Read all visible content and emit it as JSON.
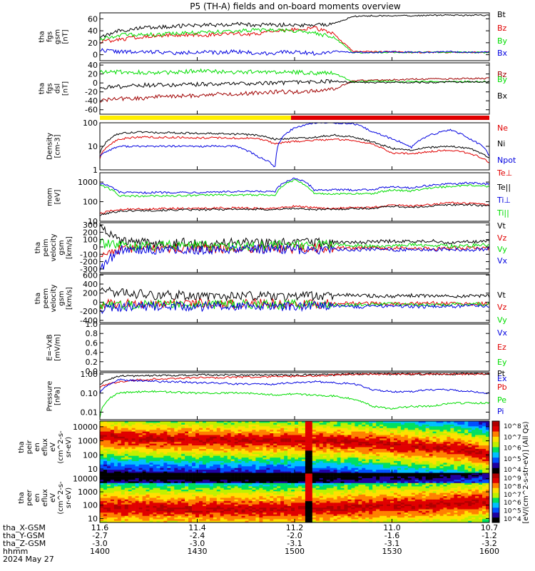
{
  "title": "P5 (TH-A) fields and on-board moments overview",
  "footer": {
    "x_gsm_label": "tha_X-GSM",
    "y_gsm_label": "tha_Y-GSM",
    "z_gsm_label": "tha_Z-GSM",
    "hhmm_label": "hhmm",
    "date": "2024 May 27",
    "x_gsm": [
      "11.6",
      "11.4",
      "11.2",
      "11.0",
      "10.7"
    ],
    "y_gsm": [
      "-2.7",
      "-2.4",
      "-2.0",
      "-1.6",
      "-1.2"
    ],
    "z_gsm": [
      "-3.0",
      "-3.0",
      "-3.1",
      "-3.1",
      "-3.2"
    ],
    "hhmm": [
      "1400",
      "1430",
      "1500",
      "1530",
      "1600"
    ]
  },
  "colorbar_label": "[eV/(cm^2-s-str-eV)] (All Qs)",
  "colors": {
    "black": "#000000",
    "red": "#e00000",
    "green": "#00dd00",
    "blue": "#0000e0",
    "darkred": "#a00000",
    "yellow": "#ffee00"
  },
  "chart_data": [
    {
      "type": "line",
      "name": "fgs",
      "ylabel": [
        "tha",
        "fgs",
        "gsm",
        "[nT]"
      ],
      "ylim": [
        -10,
        70
      ],
      "scale": "linear",
      "yticks": [
        "60",
        "40",
        "20",
        "0"
      ],
      "legend": [
        "Bt",
        "Bz",
        "By",
        "Bx"
      ],
      "series": [
        {
          "name": "Bt",
          "color": "#000000",
          "values": [
            30,
            40,
            44,
            46,
            48,
            49,
            50,
            51,
            50,
            50,
            50,
            49,
            52,
            64,
            65,
            65,
            65,
            66,
            66,
            66,
            66
          ]
        },
        {
          "name": "Bz",
          "color": "#e00000",
          "values": [
            22,
            25,
            30,
            32,
            33,
            33,
            33,
            35,
            35,
            40,
            42,
            45,
            35,
            5,
            5,
            5,
            4,
            4,
            4,
            4,
            4
          ]
        },
        {
          "name": "By",
          "color": "#00dd00",
          "values": [
            26,
            33,
            33,
            34,
            36,
            37,
            38,
            40,
            41,
            41,
            40,
            36,
            30,
            3,
            4,
            4,
            4,
            4,
            4,
            4,
            4
          ]
        },
        {
          "name": "Bx",
          "color": "#0000e0",
          "values": [
            8,
            5,
            4,
            5,
            2,
            5,
            3,
            6,
            2,
            3,
            5,
            2,
            6,
            4,
            4,
            5,
            4,
            4,
            5,
            4,
            4
          ]
        }
      ]
    },
    {
      "type": "line",
      "name": "fgs-dsl",
      "ylabel": [
        "tha",
        "fgs",
        "dsl",
        "[nT]"
      ],
      "ylim": [
        -70,
        45
      ],
      "scale": "linear",
      "yticks": [
        "40",
        "20",
        "0",
        "-20",
        "-40",
        "-60"
      ],
      "legend": [
        "Bz",
        "By",
        "Bx"
      ],
      "series": [
        {
          "name": "Bz",
          "color": "#a00000",
          "values": [
            -40,
            -35,
            -35,
            -30,
            -30,
            -28,
            -25,
            -25,
            -22,
            -20,
            -20,
            -18,
            -15,
            5,
            6,
            7,
            8,
            9,
            9,
            10,
            10
          ]
        },
        {
          "name": "By",
          "color": "#00dd00",
          "values": [
            25,
            25,
            24,
            22,
            24,
            27,
            25,
            24,
            25,
            24,
            24,
            22,
            22,
            3,
            4,
            3,
            3,
            3,
            3,
            3,
            3
          ]
        },
        {
          "name": "Bx",
          "color": "#000000",
          "values": [
            -10,
            -8,
            -5,
            -5,
            -5,
            -3,
            -3,
            -1,
            -1,
            0,
            1,
            2,
            4,
            1,
            1,
            1,
            1,
            1,
            2,
            2,
            2
          ]
        }
      ]
    },
    {
      "type": "line",
      "name": "density",
      "ylabel": [
        "Density",
        "[cm-3]"
      ],
      "ylim": [
        1,
        100
      ],
      "scale": "log",
      "yticks": [
        "100",
        "10",
        "1"
      ],
      "legend": [
        "Ne",
        "Ni",
        "Npot"
      ],
      "series": [
        {
          "name": "Ne",
          "color": "#e00000",
          "values": [
            3,
            20,
            25,
            24,
            24,
            23,
            23,
            22,
            22,
            13,
            16,
            18,
            20,
            18,
            12,
            5,
            5,
            6,
            7,
            5,
            2
          ]
        },
        {
          "name": "Ni",
          "color": "#000000",
          "values": [
            5,
            35,
            40,
            38,
            37,
            36,
            34,
            33,
            30,
            20,
            22,
            24,
            30,
            25,
            15,
            8,
            7,
            9,
            10,
            8,
            3
          ]
        },
        {
          "name": "Npot",
          "color": "#0000e0",
          "values": [
            4,
            10,
            10,
            10,
            10,
            10,
            10,
            10,
            4,
            1.3,
            60,
            100,
            100,
            90,
            40,
            20,
            9,
            30,
            50,
            20,
            4
          ]
        }
      ]
    },
    {
      "type": "line",
      "name": "temperature",
      "ylabel": [
        "mom",
        "[eV]"
      ],
      "ylim": [
        10,
        3000
      ],
      "scale": "log",
      "yticks": [
        "1000",
        "100",
        "10"
      ],
      "legend": [
        "Te⊥",
        "Te||",
        "Ti⊥",
        "Ti||"
      ],
      "series": [
        {
          "name": "Te⊥",
          "color": "#e00000",
          "values": [
            25,
            40,
            42,
            44,
            45,
            45,
            48,
            48,
            46,
            45,
            60,
            50,
            45,
            50,
            50,
            70,
            60,
            70,
            90,
            80,
            70
          ]
        },
        {
          "name": "Te||",
          "color": "#000000",
          "values": [
            20,
            33,
            35,
            36,
            38,
            38,
            40,
            42,
            40,
            40,
            45,
            40,
            40,
            45,
            45,
            60,
            50,
            60,
            70,
            70,
            60
          ]
        },
        {
          "name": "Ti⊥",
          "color": "#0000e0",
          "values": [
            900,
            300,
            280,
            300,
            300,
            300,
            320,
            320,
            330,
            320,
            1600,
            400,
            400,
            400,
            420,
            600,
            500,
            700,
            800,
            900,
            800
          ]
        },
        {
          "name": "Ti||",
          "color": "#00dd00",
          "values": [
            700,
            200,
            190,
            200,
            200,
            210,
            220,
            220,
            220,
            220,
            1300,
            250,
            250,
            250,
            260,
            400,
            350,
            500,
            600,
            700,
            600
          ]
        }
      ]
    },
    {
      "type": "line",
      "name": "ion-velocity",
      "ylabel": [
        "tha",
        "peim",
        "velocity",
        "gsm",
        "[km/s]"
      ],
      "ylim": [
        -350,
        330
      ],
      "scale": "linear",
      "yticks": [
        "300",
        "200",
        "100",
        "0",
        "-100",
        "-200",
        "-300"
      ],
      "legend": [
        "Vt",
        "Vz",
        "Vy",
        "Vx"
      ],
      "series": [
        {
          "name": "Vt",
          "color": "#000000",
          "values": [
            300,
            80,
            60,
            50,
            60,
            50,
            55,
            60,
            50,
            50,
            60,
            70,
            60,
            60,
            70,
            80,
            70,
            80,
            60,
            70,
            80
          ]
        },
        {
          "name": "Vz",
          "color": "#e00000",
          "values": [
            -100,
            -30,
            -20,
            -10,
            -20,
            -10,
            -20,
            -30,
            -20,
            -10,
            -30,
            -20,
            -10,
            -20,
            -10,
            -20,
            -10,
            -30,
            -20,
            -10,
            -20
          ]
        },
        {
          "name": "Vy",
          "color": "#00dd00",
          "values": [
            50,
            20,
            10,
            20,
            30,
            20,
            10,
            20,
            10,
            20,
            30,
            20,
            30,
            20,
            10,
            20,
            30,
            20,
            10,
            20,
            30
          ]
        },
        {
          "name": "Vx",
          "color": "#0000e0",
          "values": [
            -300,
            -40,
            -30,
            -40,
            -30,
            -40,
            -30,
            -40,
            -30,
            -40,
            -30,
            -40,
            -30,
            -40,
            -30,
            -40,
            -30,
            -40,
            -30,
            -40,
            -30
          ]
        }
      ]
    },
    {
      "type": "line",
      "name": "electron-velocity",
      "ylabel": [
        "tha",
        "peem",
        "velocity",
        "gsm",
        "[km/s]"
      ],
      "ylim": [
        -450,
        620
      ],
      "scale": "linear",
      "yticks": [
        "600",
        "400",
        "200",
        "0",
        "-200",
        "-400"
      ],
      "legend": [
        "Vt",
        "Vz",
        "Vy",
        "Vx"
      ],
      "series": [
        {
          "name": "Vt",
          "color": "#000000",
          "values": [
            300,
            200,
            180,
            150,
            160,
            140,
            130,
            150,
            140,
            130,
            120,
            140,
            150,
            160,
            140,
            130,
            150,
            140,
            130,
            140,
            130
          ]
        },
        {
          "name": "Vz",
          "color": "#e00000",
          "values": [
            -50,
            -30,
            -20,
            -40,
            -30,
            -20,
            -30,
            -40,
            -30,
            -20,
            -30,
            -40,
            -30,
            -20,
            -30,
            -40,
            -30,
            -20,
            -30,
            -40,
            -30
          ]
        },
        {
          "name": "Vy",
          "color": "#00dd00",
          "values": [
            -100,
            -60,
            -50,
            -40,
            -50,
            -60,
            -50,
            -40,
            -50,
            -60,
            -50,
            -40,
            -50,
            -60,
            -50,
            -40,
            -50,
            -60,
            -50,
            -40,
            -50
          ]
        },
        {
          "name": "Vx",
          "color": "#0000e0",
          "values": [
            -150,
            -100,
            -90,
            -80,
            -90,
            -100,
            -90,
            -80,
            -90,
            -100,
            -90,
            -80,
            -90,
            -100,
            -90,
            -80,
            -90,
            -100,
            -90,
            -80,
            -90
          ]
        }
      ]
    },
    {
      "type": "line",
      "name": "efield",
      "ylabel": [
        "E=-VxB",
        "[mV/m]"
      ],
      "ylim": [
        0,
        1
      ],
      "scale": "linear",
      "yticks": [
        "1.0",
        "0.8",
        "0.6",
        "0.4",
        "0.2",
        "0.0"
      ],
      "legend": [
        "Ez",
        "Ey",
        "Ex"
      ],
      "series": []
    },
    {
      "type": "line",
      "name": "pressure",
      "ylabel": [
        "Pressure",
        "[nPa]"
      ],
      "ylim": [
        0.004,
        1.2
      ],
      "scale": "log",
      "yticks": [
        "1.00",
        "0.10",
        "0.01"
      ],
      "legend": [
        "Pt",
        "Pb",
        "Pe",
        "Pi"
      ],
      "series": [
        {
          "name": "Pt",
          "color": "#000000",
          "values": [
            0.3,
            0.8,
            0.8,
            0.85,
            0.85,
            0.9,
            0.9,
            0.9,
            0.9,
            0.9,
            0.9,
            0.9,
            0.95,
            1.0,
            1.0,
            1.0,
            1.0,
            1.0,
            1.0,
            1.0,
            1.0
          ]
        },
        {
          "name": "Pb",
          "color": "#e00000",
          "values": [
            0.2,
            0.4,
            0.5,
            0.55,
            0.6,
            0.65,
            0.65,
            0.7,
            0.7,
            0.75,
            0.75,
            0.8,
            0.9,
            1.0,
            1.0,
            1.0,
            1.0,
            1.0,
            1.0,
            1.0,
            1.0
          ]
        },
        {
          "name": "Pe",
          "color": "#00dd00",
          "values": [
            0.005,
            0.1,
            0.12,
            0.12,
            0.11,
            0.1,
            0.1,
            0.1,
            0.1,
            0.08,
            0.09,
            0.08,
            0.07,
            0.05,
            0.02,
            0.015,
            0.02,
            0.02,
            0.03,
            0.03,
            0.03
          ]
        },
        {
          "name": "Pi",
          "color": "#0000e0",
          "values": [
            0.1,
            0.5,
            0.45,
            0.4,
            0.4,
            0.35,
            0.35,
            0.3,
            0.3,
            0.3,
            0.35,
            0.4,
            0.35,
            0.3,
            0.15,
            0.12,
            0.12,
            0.15,
            0.15,
            0.12,
            0.1
          ]
        }
      ]
    },
    {
      "type": "heatmap",
      "name": "ion-spectrogram",
      "ylabel": [
        "tha",
        "peir",
        "en",
        "eflux",
        "eV",
        "(cm^2-s-",
        "sr-eV)"
      ],
      "ylim": [
        5,
        25000
      ],
      "scale": "log",
      "yticks": [
        "10000",
        "1000",
        "100",
        "10"
      ],
      "colorbar_ticks": [
        "10^8",
        "10^7",
        "10^6",
        "10^5",
        "10^4"
      ],
      "dominant_energy": [
        2000,
        1500,
        1400,
        1300,
        1300,
        1200,
        1200,
        1100,
        1100,
        1100,
        1100,
        1000,
        900,
        800,
        700,
        500,
        400,
        300,
        300,
        200,
        100
      ]
    },
    {
      "type": "heatmap",
      "name": "electron-spectrogram",
      "ylabel": [
        "tha",
        "peer",
        "en",
        "eflux",
        "eV",
        "(cm^2-s-",
        "sr-eV)"
      ],
      "ylim": [
        5,
        25000
      ],
      "scale": "log",
      "yticks": [
        "10000",
        "1000",
        "100",
        "10"
      ],
      "colorbar_ticks": [
        "10^9",
        "10^8",
        "10^7",
        "10^6",
        "10^5",
        "10^4"
      ],
      "dominant_energy": [
        60,
        60,
        60,
        55,
        55,
        50,
        50,
        50,
        50,
        50,
        50,
        60,
        60,
        70,
        80,
        100,
        90,
        100,
        120,
        150,
        200
      ]
    }
  ]
}
